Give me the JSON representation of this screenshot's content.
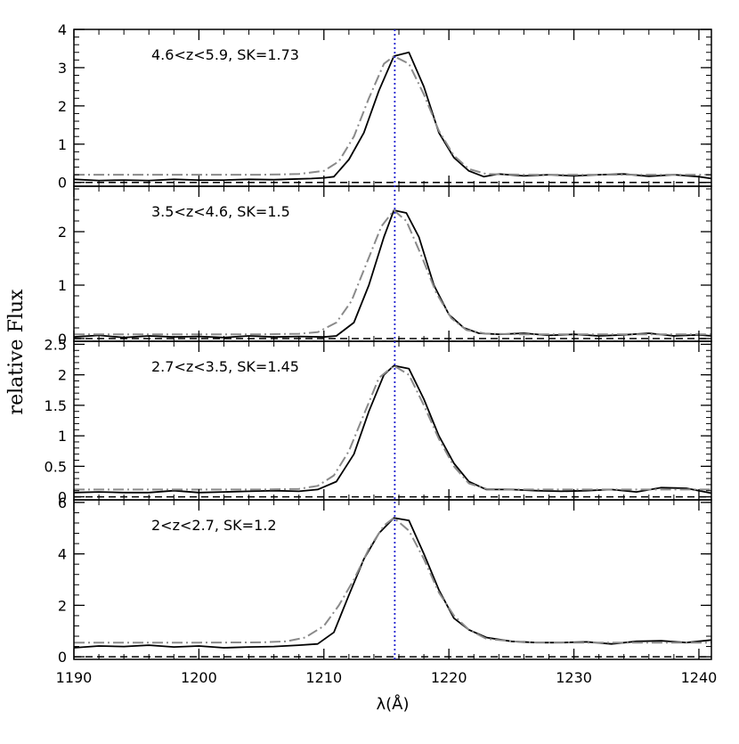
{
  "chart_data": {
    "type": "line",
    "xlabel": "λ(Å)",
    "ylabel": "relative Flux",
    "xlim": [
      1190,
      1241
    ],
    "x_ticks": [
      "1190",
      "1200",
      "1210",
      "1220",
      "1230",
      "1240"
    ],
    "reference_line_x": 1215.67,
    "colors": {
      "observed": "#000000",
      "model": "#8a8a8a",
      "reference": "#2020d0",
      "zero_line": "#000000"
    },
    "panels": [
      {
        "label": "4.6<z<5.9, SK=1.73",
        "ylim": [
          -0.1,
          4.0
        ],
        "y_ticks": [
          "0",
          "1",
          "2",
          "3",
          "4"
        ],
        "y_tick_values": [
          0,
          1,
          2,
          3,
          4
        ],
        "series": [
          {
            "style": "solid",
            "x": [
              1190,
              1192,
              1194,
              1196,
              1198,
              1200,
              1202,
              1204,
              1206,
              1208,
              1209,
              1210,
              1210.8,
              1212,
              1213.2,
              1214.4,
              1215.6,
              1216.8,
              1218,
              1219.2,
              1220.4,
              1221.6,
              1222.8,
              1224,
              1226,
              1228,
              1230,
              1232,
              1234,
              1236,
              1238,
              1240,
              1241
            ],
            "y": [
              0.08,
              0.05,
              0.06,
              0.05,
              0.08,
              0.06,
              0.06,
              0.08,
              0.07,
              0.09,
              0.1,
              0.12,
              0.15,
              0.6,
              1.3,
              2.4,
              3.3,
              3.4,
              2.5,
              1.3,
              0.65,
              0.3,
              0.15,
              0.22,
              0.17,
              0.2,
              0.17,
              0.2,
              0.22,
              0.16,
              0.2,
              0.15,
              0.1
            ]
          },
          {
            "style": "dash-dot",
            "x": [
              1190,
              1195,
              1200,
              1205,
              1208,
              1210,
              1211.2,
              1212.4,
              1213.6,
              1214.8,
              1215.6,
              1216.8,
              1218,
              1219.2,
              1220.4,
              1221.6,
              1223,
              1226,
              1230,
              1235,
              1241
            ],
            "y": [
              0.2,
              0.2,
              0.2,
              0.2,
              0.22,
              0.3,
              0.55,
              1.2,
              2.2,
              3.1,
              3.3,
              3.1,
              2.3,
              1.35,
              0.7,
              0.35,
              0.22,
              0.2,
              0.2,
              0.2,
              0.2
            ]
          }
        ]
      },
      {
        "label": "3.5<z<4.6, SK=1.5",
        "ylim": [
          -0.05,
          2.85
        ],
        "y_ticks": [
          "0",
          "1",
          "2"
        ],
        "y_tick_values": [
          0,
          1,
          2
        ],
        "series": [
          {
            "style": "solid",
            "x": [
              1190,
              1192,
              1194,
              1196,
              1198,
              1200,
              1202,
              1204,
              1206,
              1208,
              1210,
              1211,
              1212.4,
              1213.6,
              1214.8,
              1215.6,
              1216.6,
              1217.6,
              1218.8,
              1220,
              1221.2,
              1222.4,
              1224,
              1226,
              1228,
              1230,
              1232,
              1234,
              1236,
              1238,
              1240,
              1241
            ],
            "y": [
              0.03,
              0.06,
              0.02,
              0.05,
              0.03,
              0.04,
              0.02,
              0.05,
              0.03,
              0.04,
              0.03,
              0.05,
              0.3,
              1.0,
              1.9,
              2.4,
              2.35,
              1.9,
              1.0,
              0.45,
              0.2,
              0.1,
              0.08,
              0.1,
              0.06,
              0.08,
              0.05,
              0.07,
              0.1,
              0.05,
              0.07,
              0.05
            ]
          },
          {
            "style": "dash-dot",
            "x": [
              1190,
              1195,
              1200,
              1205,
              1208,
              1209.5,
              1211,
              1212.2,
              1213.4,
              1214.6,
              1215.6,
              1216.6,
              1217.8,
              1219,
              1220.2,
              1221.4,
              1223,
              1226,
              1230,
              1235,
              1241
            ],
            "y": [
              0.08,
              0.08,
              0.08,
              0.08,
              0.09,
              0.12,
              0.3,
              0.7,
              1.4,
              2.1,
              2.4,
              2.2,
              1.55,
              0.85,
              0.38,
              0.16,
              0.09,
              0.08,
              0.08,
              0.08,
              0.08
            ]
          }
        ]
      },
      {
        "label": "2.7<z<3.5, SK=1.45",
        "ylim": [
          -0.05,
          2.55
        ],
        "y_ticks": [
          "0",
          "0.5",
          "1",
          "1.5",
          "2",
          "2.5"
        ],
        "y_tick_values": [
          0,
          0.5,
          1,
          1.5,
          2,
          2.5
        ],
        "series": [
          {
            "style": "solid",
            "x": [
              1190,
              1192,
              1194,
              1196,
              1198,
              1200,
              1202,
              1204,
              1206,
              1208,
              1209.5,
              1211,
              1212.4,
              1213.6,
              1214.8,
              1215.6,
              1216.8,
              1218,
              1219.2,
              1220.4,
              1221.6,
              1223,
              1225,
              1227,
              1229,
              1231,
              1233,
              1235,
              1237,
              1239,
              1241
            ],
            "y": [
              0.07,
              0.08,
              0.07,
              0.07,
              0.1,
              0.07,
              0.08,
              0.09,
              0.1,
              0.09,
              0.12,
              0.25,
              0.7,
              1.4,
              2.0,
              2.15,
              2.1,
              1.6,
              1.0,
              0.55,
              0.25,
              0.12,
              0.12,
              0.1,
              0.09,
              0.1,
              0.12,
              0.08,
              0.15,
              0.14,
              0.06
            ]
          },
          {
            "style": "dash-dot",
            "x": [
              1190,
              1195,
              1200,
              1205,
              1208,
              1209.5,
              1210.8,
              1212,
              1213.2,
              1214.4,
              1215.6,
              1216.8,
              1218,
              1219.2,
              1220.4,
              1221.6,
              1223,
              1226,
              1230,
              1235,
              1241
            ],
            "y": [
              0.12,
              0.12,
              0.12,
              0.12,
              0.13,
              0.18,
              0.35,
              0.75,
              1.35,
              1.95,
              2.15,
              2.0,
              1.5,
              0.95,
              0.5,
              0.22,
              0.13,
              0.12,
              0.12,
              0.12,
              0.12
            ]
          }
        ]
      },
      {
        "label": "2<z<2.7, SK=1.2",
        "ylim": [
          -0.1,
          6.1
        ],
        "y_ticks": [
          "0",
          "2",
          "4",
          "6"
        ],
        "y_tick_values": [
          0,
          2,
          4,
          6
        ],
        "series": [
          {
            "style": "solid",
            "x": [
              1190,
              1192,
              1194,
              1196,
              1198,
              1200,
              1202,
              1204,
              1206,
              1208,
              1209.5,
              1210.8,
              1212,
              1213.2,
              1214.4,
              1215.6,
              1216.8,
              1218,
              1219.2,
              1220.4,
              1221.6,
              1223,
              1225,
              1227,
              1229,
              1231,
              1233,
              1235,
              1237,
              1239,
              1241
            ],
            "y": [
              0.35,
              0.42,
              0.4,
              0.45,
              0.38,
              0.42,
              0.35,
              0.38,
              0.4,
              0.45,
              0.5,
              0.95,
              2.4,
              3.8,
              4.8,
              5.4,
              5.3,
              4.0,
              2.6,
              1.5,
              1.05,
              0.75,
              0.6,
              0.55,
              0.55,
              0.58,
              0.5,
              0.6,
              0.62,
              0.55,
              0.65
            ]
          },
          {
            "style": "dash-dot",
            "x": [
              1190,
              1195,
              1200,
              1205,
              1207,
              1208.5,
              1210,
              1211.2,
              1212.4,
              1213.6,
              1214.8,
              1215.6,
              1216.8,
              1218,
              1219.2,
              1220.4,
              1221.6,
              1223,
              1226,
              1230,
              1235,
              1241
            ],
            "y": [
              0.55,
              0.55,
              0.55,
              0.56,
              0.6,
              0.75,
              1.2,
              2.0,
              3.0,
              4.2,
              5.1,
              5.4,
              4.9,
              3.8,
              2.5,
              1.6,
              1.05,
              0.7,
              0.56,
              0.55,
              0.55,
              0.55
            ]
          }
        ]
      }
    ]
  }
}
